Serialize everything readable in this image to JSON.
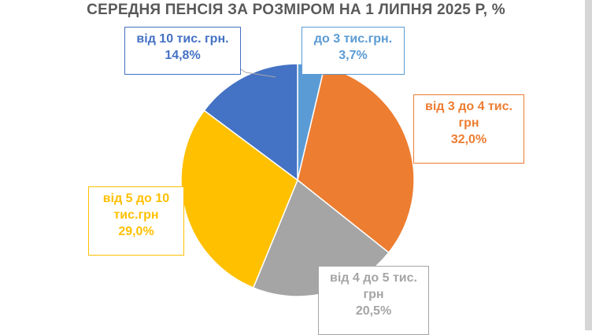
{
  "chart_data": {
    "type": "pie",
    "title": "СЕРЕДНЯ ПЕНСІЯ ЗА РОЗМІРОМ НА 1 ЛИПНЯ 2025 Р, %",
    "slices": [
      {
        "label_lines": [
          "до 3 тис.грн."
        ],
        "value": 3.7,
        "value_label": "3,7%",
        "color": "#5b9bd5"
      },
      {
        "label_lines": [
          "від 3 до 4 тис.",
          "грн"
        ],
        "value": 32.0,
        "value_label": "32,0%",
        "color": "#ed7d31"
      },
      {
        "label_lines": [
          "від 4 до 5 тис.",
          "грн"
        ],
        "value": 20.5,
        "value_label": "20,5%",
        "color": "#a5a5a5"
      },
      {
        "label_lines": [
          "від 5 до 10",
          "тис.грн"
        ],
        "value": 29.0,
        "value_label": "29,0%",
        "color": "#ffc000"
      },
      {
        "label_lines": [
          "від 10 тис. грн."
        ],
        "value": 14.8,
        "value_label": "14,8%",
        "color": "#4472c4"
      }
    ]
  }
}
